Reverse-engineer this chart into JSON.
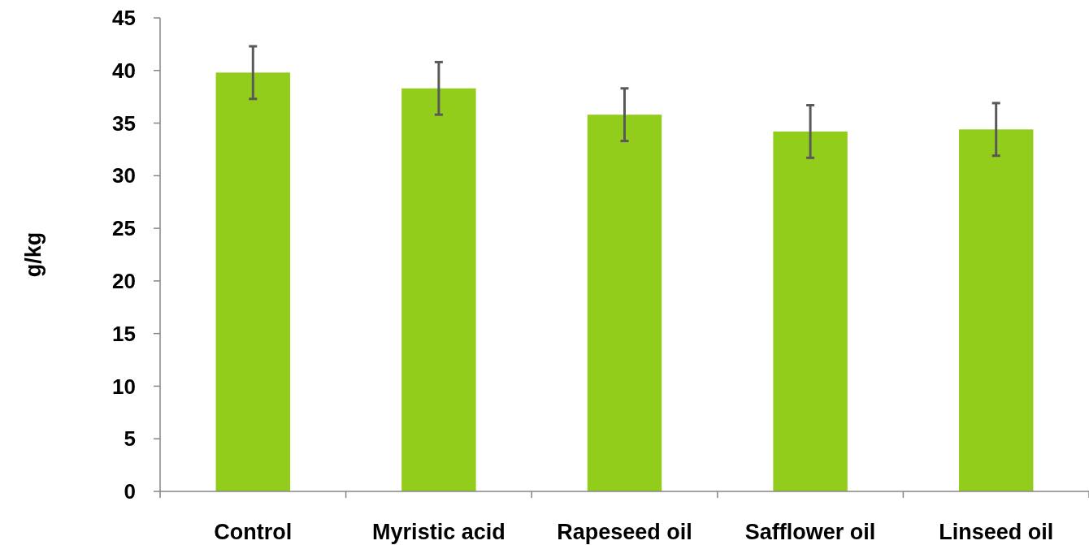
{
  "chart_data": {
    "type": "bar",
    "ylabel": "g/kg",
    "categories": [
      "Control",
      "Myristic acid",
      "Rapeseed oil",
      "Safflower oil",
      "Linseed oil"
    ],
    "values": [
      39.8,
      38.3,
      35.8,
      34.2,
      34.4
    ],
    "errors": [
      2.5,
      2.5,
      2.5,
      2.5,
      2.5
    ],
    "color": "#92cd1b",
    "ylim": [
      0,
      45
    ],
    "yticks": [
      0,
      5,
      10,
      15,
      20,
      25,
      30,
      35,
      40,
      45
    ],
    "grid": false
  }
}
